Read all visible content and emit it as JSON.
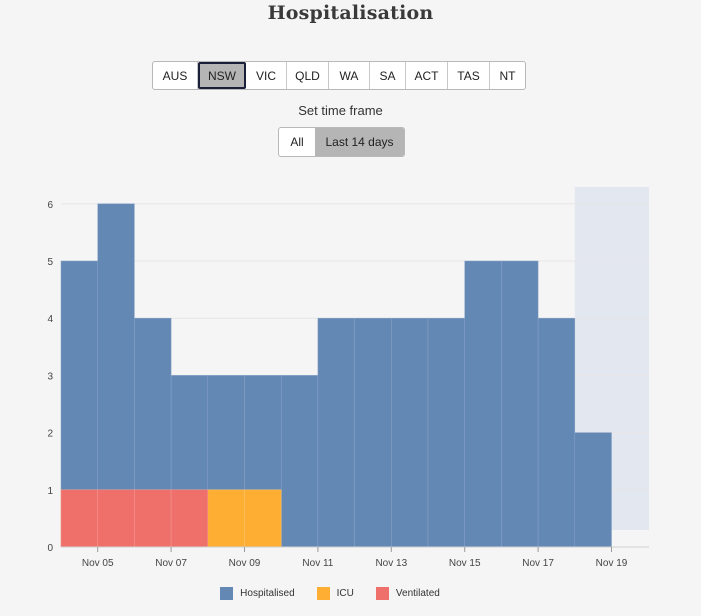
{
  "title": "Hospitalisation",
  "regions": [
    "AUS",
    "NSW",
    "VIC",
    "QLD",
    "WA",
    "SA",
    "ACT",
    "TAS",
    "NT"
  ],
  "selected_region": "NSW",
  "timeframe": {
    "label": "Set time frame",
    "options": [
      "All",
      "Last 14 days"
    ],
    "selected": "Last 14 days"
  },
  "colors": {
    "hospitalised": "#6388b4",
    "icu": "#ffae34",
    "ventilated": "#ef6f6a",
    "forecast_shade": "#e3e7f0"
  },
  "chart_data": {
    "type": "bar",
    "categories": [
      "Nov 04",
      "Nov 05",
      "Nov 06",
      "Nov 07",
      "Nov 08",
      "Nov 09",
      "Nov 10",
      "Nov 11",
      "Nov 12",
      "Nov 13",
      "Nov 14",
      "Nov 15",
      "Nov 16",
      "Nov 17",
      "Nov 18"
    ],
    "x_tick_labels": [
      "Nov 05",
      "Nov 07",
      "Nov 09",
      "Nov 11",
      "Nov 13",
      "Nov 15",
      "Nov 17",
      "Nov 19"
    ],
    "series": [
      {
        "name": "Hospitalised",
        "values": [
          5,
          6,
          4,
          3,
          3,
          3,
          3,
          4,
          4,
          4,
          4,
          5,
          5,
          4,
          2
        ]
      },
      {
        "name": "ICU",
        "values": [
          1,
          1,
          1,
          1,
          1,
          1,
          0,
          0,
          0,
          0,
          0,
          0,
          0,
          0,
          0
        ]
      },
      {
        "name": "Ventilated",
        "values": [
          1,
          1,
          1,
          1,
          0,
          0,
          0,
          0,
          0,
          0,
          0,
          0,
          0,
          0,
          0
        ]
      }
    ],
    "y_ticks": [
      0,
      1,
      2,
      3,
      4,
      5,
      6
    ],
    "ylim": [
      0,
      6
    ],
    "shaded_region_start": "Nov 17",
    "legend_position": "bottom"
  }
}
